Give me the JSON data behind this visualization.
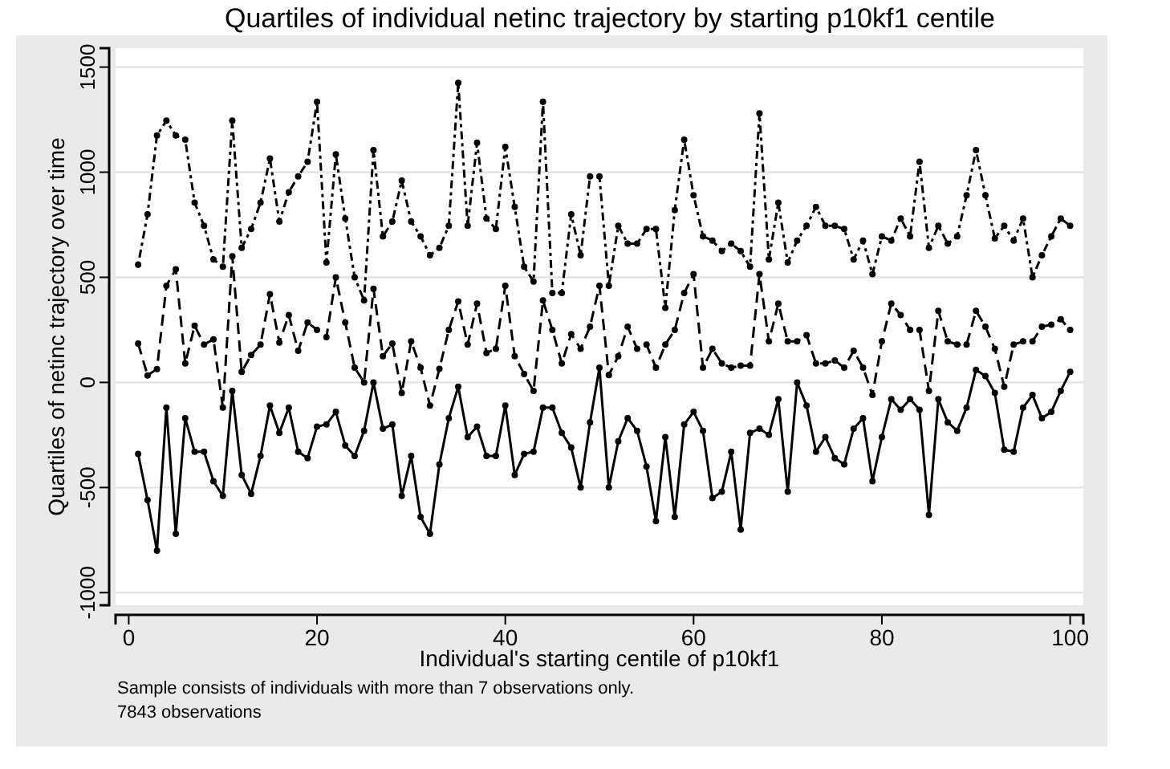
{
  "chart_data": {
    "type": "line",
    "title": "Quartiles of individual netinc trajectory by starting p10kf1 centile",
    "xlabel": "Individual's starting centile of p10kf1",
    "ylabel": "Quartiles of netinc trajectory over time",
    "annotations": [
      "Sample consists of individuals with more than 7 observations only.",
      "7843 observations"
    ],
    "x": [
      1,
      2,
      3,
      4,
      5,
      6,
      7,
      8,
      9,
      10,
      11,
      12,
      13,
      14,
      15,
      16,
      17,
      18,
      19,
      20,
      21,
      22,
      23,
      24,
      25,
      26,
      27,
      28,
      29,
      30,
      31,
      32,
      33,
      34,
      35,
      36,
      37,
      38,
      39,
      40,
      41,
      42,
      43,
      44,
      45,
      46,
      47,
      48,
      49,
      50,
      51,
      52,
      53,
      54,
      55,
      56,
      57,
      58,
      59,
      60,
      61,
      62,
      63,
      64,
      65,
      66,
      67,
      68,
      69,
      70,
      71,
      72,
      73,
      74,
      75,
      76,
      77,
      78,
      79,
      80,
      81,
      82,
      83,
      84,
      85,
      86,
      87,
      88,
      89,
      90,
      91,
      92,
      93,
      94,
      95,
      96,
      97,
      98,
      99,
      100
    ],
    "series": [
      {
        "color": "#000000",
        "line_style": "solid",
        "values": [
          -340,
          -560,
          -800,
          -120,
          -720,
          -170,
          -330,
          -330,
          -470,
          -540,
          -40,
          -440,
          -530,
          -350,
          -110,
          -240,
          -120,
          -330,
          -360,
          -210,
          -200,
          -140,
          -300,
          -350,
          -230,
          0,
          -220,
          -200,
          -540,
          -350,
          -640,
          -720,
          -390,
          -170,
          -20,
          -260,
          -210,
          -350,
          -350,
          -110,
          -440,
          -340,
          -330,
          -120,
          -120,
          -240,
          -310,
          -500,
          -190,
          70,
          -500,
          -280,
          -170,
          -230,
          -400,
          -660,
          -260,
          -640,
          -200,
          -140,
          -230,
          -550,
          -520,
          -330,
          -700,
          -240,
          -220,
          -250,
          -80,
          -520,
          0,
          -110,
          -330,
          -260,
          -360,
          -390,
          -220,
          -170,
          -470,
          -260,
          -80,
          -130,
          -80,
          -130,
          -630,
          -80,
          -190,
          -230,
          -120,
          60,
          30,
          -50,
          -320,
          -330,
          -120,
          -60,
          -170,
          -140,
          -40,
          50
        ]
      },
      {
        "color": "#000000",
        "line_style": "dashed",
        "values": [
          185,
          33,
          64,
          460,
          538,
          90,
          270,
          180,
          205,
          -120,
          600,
          50,
          130,
          180,
          420,
          190,
          320,
          150,
          285,
          250,
          215,
          500,
          285,
          70,
          0,
          445,
          125,
          185,
          -50,
          195,
          70,
          -110,
          65,
          250,
          385,
          180,
          375,
          140,
          160,
          460,
          125,
          40,
          -40,
          390,
          250,
          90,
          230,
          160,
          265,
          460,
          35,
          125,
          265,
          160,
          180,
          70,
          180,
          250,
          425,
          515,
          70,
          160,
          90,
          70,
          80,
          80,
          515,
          195,
          375,
          195,
          195,
          225,
          90,
          90,
          105,
          70,
          150,
          70,
          -60,
          195,
          375,
          320,
          250,
          250,
          -40,
          340,
          195,
          180,
          180,
          340,
          265,
          160,
          -20,
          180,
          195,
          195,
          265,
          275,
          300,
          250
        ]
      },
      {
        "color": "#000000",
        "line_style": "dotted",
        "values": [
          560,
          800,
          1175,
          1245,
          1175,
          1155,
          855,
          745,
          585,
          550,
          1245,
          640,
          730,
          855,
          1065,
          765,
          905,
          980,
          1050,
          1335,
          570,
          1085,
          780,
          500,
          390,
          1105,
          695,
          765,
          960,
          765,
          695,
          605,
          640,
          745,
          1425,
          745,
          1140,
          780,
          730,
          1120,
          835,
          550,
          480,
          1335,
          425,
          425,
          800,
          605,
          980,
          980,
          460,
          745,
          660,
          660,
          730,
          730,
          355,
          820,
          1155,
          890,
          695,
          675,
          625,
          660,
          625,
          550,
          1280,
          585,
          855,
          570,
          675,
          745,
          835,
          745,
          745,
          730,
          585,
          675,
          515,
          695,
          675,
          780,
          695,
          1050,
          640,
          745,
          660,
          695,
          890,
          1105,
          890,
          685,
          745,
          675,
          780,
          500,
          605,
          695,
          780,
          745
        ]
      }
    ],
    "marker": "circle",
    "xlim": [
      -1.4,
      101.4
    ],
    "xticks": [
      0,
      20,
      40,
      60,
      80,
      100
    ],
    "ylim": [
      -1060,
      1590
    ],
    "yticks": [
      {
        "value": -1000,
        "label": "-1000"
      },
      {
        "value": -500,
        "label": "-500"
      },
      0,
      500,
      1000,
      1500
    ],
    "grid": "y"
  }
}
